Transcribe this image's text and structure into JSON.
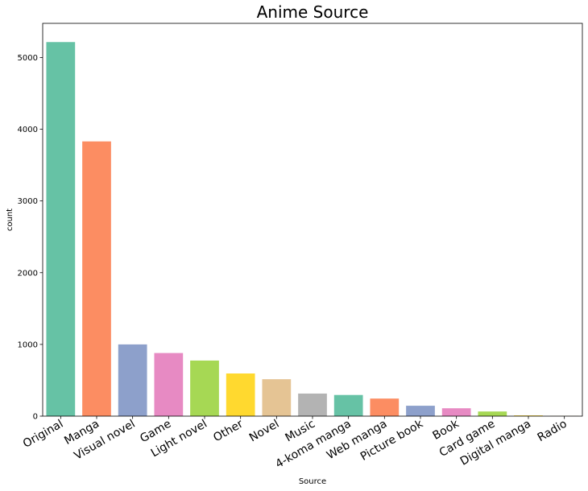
{
  "chart_data": {
    "type": "bar",
    "title": "Anime Source",
    "xlabel": "Source",
    "ylabel": "count",
    "categories": [
      "Original",
      "Manga",
      "Visual novel",
      "Game",
      "Light novel",
      "Other",
      "Novel",
      "Music",
      "4-koma manga",
      "Web manga",
      "Picture book",
      "Book",
      "Card game",
      "Digital manga",
      "Radio"
    ],
    "values": [
      5215,
      3830,
      1000,
      880,
      775,
      595,
      515,
      315,
      295,
      245,
      145,
      110,
      65,
      10,
      5
    ],
    "colors": [
      "#66c2a5",
      "#fc8d62",
      "#8da0cb",
      "#e78ac3",
      "#a6d854",
      "#ffd92f",
      "#e5c494",
      "#b3b3b3",
      "#66c2a5",
      "#fc8d62",
      "#8da0cb",
      "#e78ac3",
      "#a6d854",
      "#ffd92f",
      "#e5c494"
    ],
    "ylim": [
      0,
      5476
    ],
    "yticks": [
      0,
      1000,
      2000,
      3000,
      4000,
      5000
    ],
    "grid": false,
    "legend": "none"
  }
}
